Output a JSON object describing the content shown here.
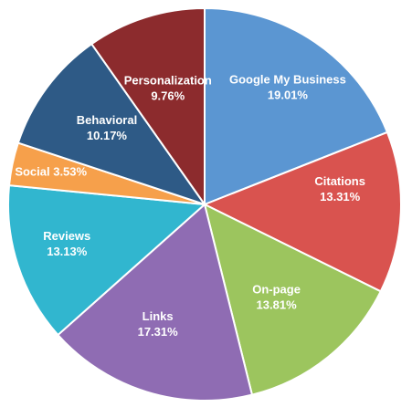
{
  "chart_data": {
    "type": "pie",
    "start_angle_deg": 0,
    "direction": "clockwise",
    "slices": [
      {
        "label": "Google My Business",
        "value": 19.01,
        "value_label": "19.01%",
        "color": "#5B96D2"
      },
      {
        "label": "Citations",
        "value": 13.31,
        "value_label": "13.31%",
        "color": "#D9534F"
      },
      {
        "label": "On-page",
        "value": 13.81,
        "value_label": "13.81%",
        "color": "#9CC55E"
      },
      {
        "label": "Links",
        "value": 17.31,
        "value_label": "17.31%",
        "color": "#8F6CB3"
      },
      {
        "label": "Reviews",
        "value": 13.13,
        "value_label": "13.13%",
        "color": "#31B6CF"
      },
      {
        "label": "Social",
        "value": 3.53,
        "value_label": "3.53%",
        "color": "#F6A04B"
      },
      {
        "label": "Behavioral",
        "value": 10.17,
        "value_label": "10.17%",
        "color": "#2E5A86"
      },
      {
        "label": "Personalization",
        "value": 9.76,
        "value_label": "9.76%",
        "color": "#8C2B2D"
      }
    ]
  }
}
